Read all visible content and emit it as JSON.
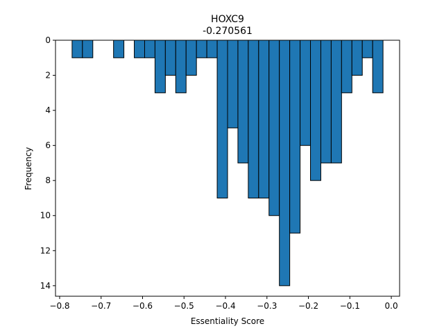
{
  "chart_data": {
    "type": "bar",
    "title": "HOXC9",
    "subtitle": "-0.270561",
    "xlabel": "Essentiality Score",
    "ylabel": "Frequency",
    "xlim": [
      -0.81,
      0.02
    ],
    "ylim": [
      14.6,
      0
    ],
    "y_inverted": true,
    "bar_color": "#1f77b4",
    "edge_color": "#000000",
    "grid": false,
    "legend": "none",
    "xticks": [
      -0.8,
      -0.7,
      -0.6,
      -0.5,
      -0.4,
      -0.3,
      -0.2,
      -0.1,
      0.0
    ],
    "xtick_labels": [
      "−0.8",
      "−0.7",
      "−0.6",
      "−0.5",
      "−0.4",
      "−0.3",
      "−0.2",
      "−0.1",
      "0.0"
    ],
    "yticks": [
      0,
      2,
      4,
      6,
      8,
      10,
      12,
      14
    ],
    "ytick_labels": [
      "0",
      "2",
      "4",
      "6",
      "8",
      "10",
      "12",
      "14"
    ],
    "bin_width": 0.025,
    "bins": [
      {
        "start": -0.77,
        "count": 1
      },
      {
        "start": -0.745,
        "count": 1
      },
      {
        "start": -0.72,
        "count": 0
      },
      {
        "start": -0.695,
        "count": 0
      },
      {
        "start": -0.67,
        "count": 1
      },
      {
        "start": -0.645,
        "count": 0
      },
      {
        "start": -0.62,
        "count": 1
      },
      {
        "start": -0.595,
        "count": 1
      },
      {
        "start": -0.57,
        "count": 3
      },
      {
        "start": -0.545,
        "count": 2
      },
      {
        "start": -0.52,
        "count": 3
      },
      {
        "start": -0.495,
        "count": 2
      },
      {
        "start": -0.47,
        "count": 1
      },
      {
        "start": -0.445,
        "count": 1
      },
      {
        "start": -0.42,
        "count": 9
      },
      {
        "start": -0.395,
        "count": 5
      },
      {
        "start": -0.37,
        "count": 7
      },
      {
        "start": -0.345,
        "count": 9
      },
      {
        "start": -0.32,
        "count": 9
      },
      {
        "start": -0.295,
        "count": 10
      },
      {
        "start": -0.27,
        "count": 14
      },
      {
        "start": -0.245,
        "count": 11
      },
      {
        "start": -0.22,
        "count": 6
      },
      {
        "start": -0.195,
        "count": 8
      },
      {
        "start": -0.17,
        "count": 7
      },
      {
        "start": -0.145,
        "count": 7
      },
      {
        "start": -0.12,
        "count": 3
      },
      {
        "start": -0.095,
        "count": 2
      },
      {
        "start": -0.07,
        "count": 1
      },
      {
        "start": -0.045,
        "count": 3
      }
    ]
  }
}
